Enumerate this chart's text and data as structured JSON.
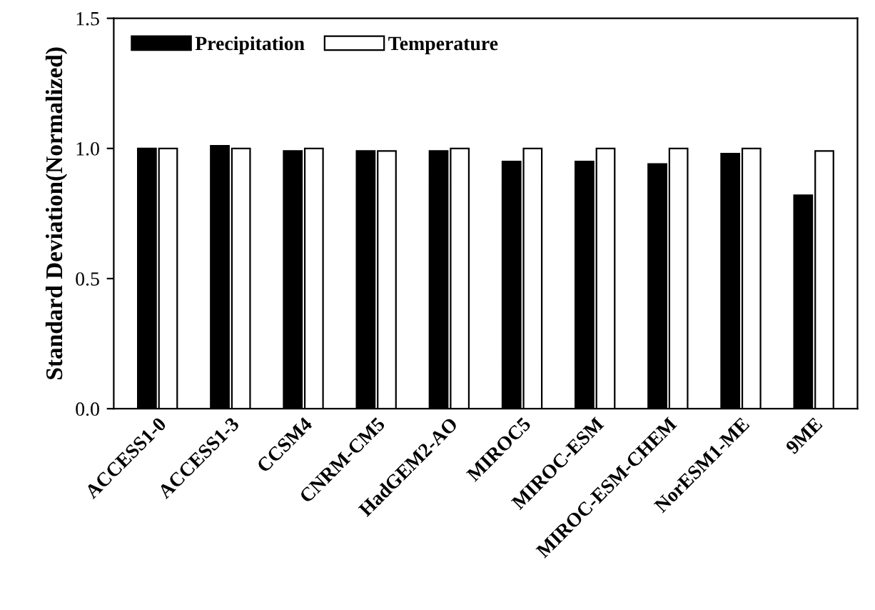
{
  "chart_data": {
    "type": "bar",
    "ylabel": "Standard Deviation(Normalized)",
    "categories": [
      "ACCESS1-0",
      "ACCESS1-3",
      "CCSM4",
      "CNRM-CM5",
      "HadGEM2-AO",
      "MIROC5",
      "MIROC-ESM",
      "MIROC-ESM-CHEM",
      "NorESM1-ME",
      "9ME"
    ],
    "series": [
      {
        "name": "Precipitation",
        "color": "#000000",
        "values": [
          1.0,
          1.01,
          0.99,
          0.99,
          0.99,
          0.95,
          0.95,
          0.94,
          0.98,
          0.82
        ]
      },
      {
        "name": "Temperature",
        "color": "#ffffff",
        "values": [
          1.0,
          1.0,
          1.0,
          0.99,
          1.0,
          1.0,
          1.0,
          1.0,
          1.0,
          0.99
        ]
      }
    ],
    "ylim": [
      0,
      1.5
    ],
    "yticks": [
      {
        "value": 0,
        "label": "0.0"
      },
      {
        "value": 0.5,
        "label": "0.5"
      },
      {
        "value": 1,
        "label": "1.0"
      },
      {
        "value": 1.5,
        "label": "1.5"
      }
    ],
    "grid": false,
    "legend": "top left"
  }
}
